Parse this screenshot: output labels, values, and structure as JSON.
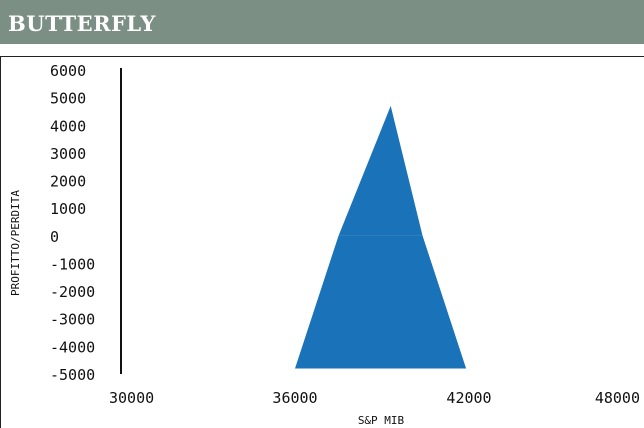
{
  "header": {
    "title": "BUTTERFLY"
  },
  "colors": {
    "header_bg": "#7c8f84",
    "fill": "#1a72b8",
    "axis": "#111111"
  },
  "chart_data": {
    "type": "area",
    "title": "BUTTERFLY",
    "xlabel": "S&P MIB",
    "ylabel": "PROFITTO/PERDITA",
    "xlim": [
      30000,
      48000
    ],
    "ylim": [
      -5000,
      6000
    ],
    "x_ticks": [
      "30000",
      "36000",
      "42000",
      "48000"
    ],
    "y_ticks": [
      "6000",
      "5000",
      "4000",
      "3000",
      "2000",
      "1000",
      "0",
      "-1000",
      "-2000",
      "-3000",
      "-4000",
      "-5000"
    ],
    "series": [
      {
        "x": [
          30000,
          37500,
          39300,
          40400,
          48000
        ],
        "y": [
          0,
          0,
          4700,
          0,
          0
        ]
      },
      {
        "x": [
          30000,
          36000,
          37500,
          40400,
          41900,
          48000
        ],
        "y": [
          -4800,
          -4800,
          0,
          0,
          -4800,
          -4800
        ]
      }
    ]
  }
}
